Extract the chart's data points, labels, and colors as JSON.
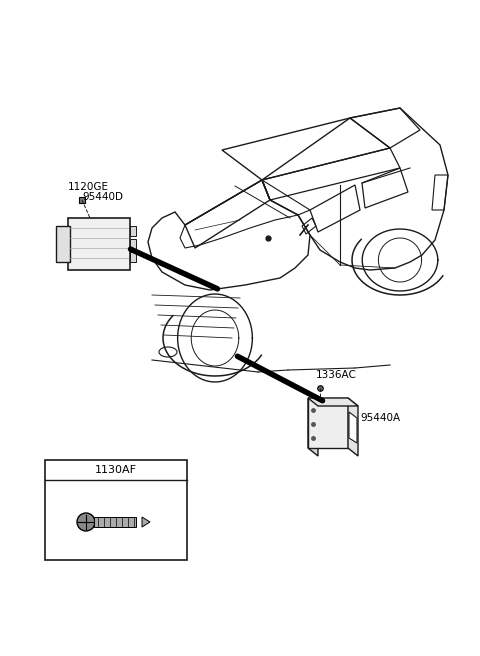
{
  "bg_color": "#ffffff",
  "fig_width": 4.8,
  "fig_height": 6.56,
  "dpi": 100,
  "labels": {
    "ref1": "1120GE",
    "part1": "95440D",
    "ref2": "1336AC",
    "part2": "95440A",
    "bolt_ref": "1130AF"
  },
  "text_color": "#000000",
  "line_color": "#1a1a1a",
  "leader_lw": 5.0
}
